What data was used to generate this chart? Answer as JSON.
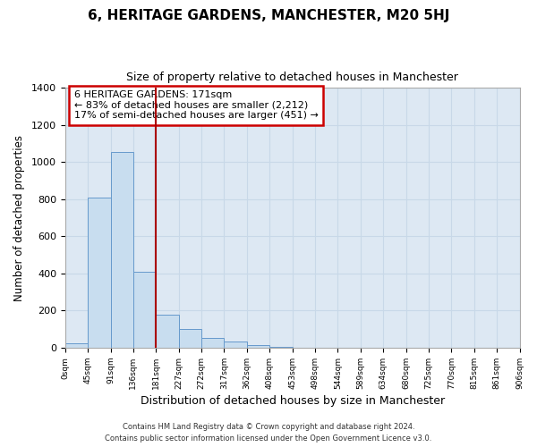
{
  "title": "6, HERITAGE GARDENS, MANCHESTER, M20 5HJ",
  "subtitle": "Size of property relative to detached houses in Manchester",
  "xlabel": "Distribution of detached houses by size in Manchester",
  "ylabel": "Number of detached properties",
  "bar_values": [
    25,
    810,
    1055,
    410,
    180,
    100,
    55,
    35,
    15,
    5,
    0,
    0,
    0,
    0,
    0,
    0,
    0,
    0,
    0,
    0
  ],
  "bar_labels": [
    "0sqm",
    "45sqm",
    "91sqm",
    "136sqm",
    "181sqm",
    "227sqm",
    "272sqm",
    "317sqm",
    "362sqm",
    "408sqm",
    "453sqm",
    "498sqm",
    "544sqm",
    "589sqm",
    "634sqm",
    "680sqm",
    "725sqm",
    "770sqm",
    "815sqm",
    "861sqm",
    "906sqm"
  ],
  "bar_color": "#c8ddef",
  "bar_edge_color": "#6699cc",
  "bar_width": 1.0,
  "vline_x": 4,
  "vline_color": "#aa0000",
  "annotation_title": "6 HERITAGE GARDENS: 171sqm",
  "annotation_line1": "← 83% of detached houses are smaller (2,212)",
  "annotation_line2": "17% of semi-detached houses are larger (451) →",
  "annotation_box_color": "#cc0000",
  "ylim": [
    0,
    1400
  ],
  "yticks": [
    0,
    200,
    400,
    600,
    800,
    1000,
    1200,
    1400
  ],
  "grid_color": "#c8d8e8",
  "bg_color": "#dde8f3",
  "fig_color": "#ffffff",
  "footnote1": "Contains HM Land Registry data © Crown copyright and database right 2024.",
  "footnote2": "Contains public sector information licensed under the Open Government Licence v3.0."
}
